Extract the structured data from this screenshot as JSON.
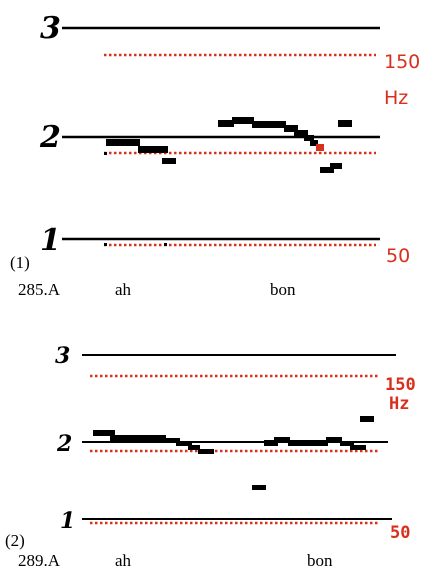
{
  "panel1": {
    "number": "(1)",
    "code": "285.A",
    "word1": "ah",
    "word2": "bon",
    "levels": [
      "3",
      "2",
      "1"
    ],
    "hz_high": "150",
    "hz_unit": "Hz",
    "hz_low": "50"
  },
  "panel2": {
    "number": "(2)",
    "code": "289.A",
    "word1": "ah",
    "word2": "bon",
    "levels": [
      "3",
      "2",
      "1"
    ],
    "hz_high": "150",
    "hz_unit": "Hz",
    "hz_low": "50"
  },
  "colors": {
    "guide": "#d8301c",
    "trace": "#000000",
    "highlight": "#d8301c"
  }
}
